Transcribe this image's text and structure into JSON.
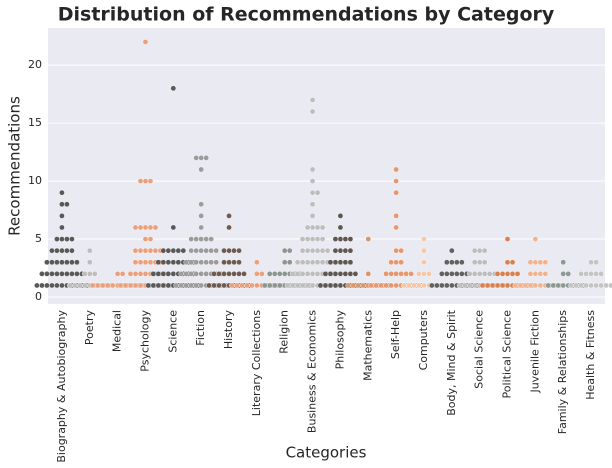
{
  "chart_data": {
    "type": "swarm",
    "title": "Distribution of Recommendations by Category",
    "xlabel": "Categories",
    "ylabel": "Recommendations",
    "ylim": [
      -0.6,
      23.2
    ],
    "yticks": [
      0,
      5,
      10,
      15,
      20
    ],
    "grid": true,
    "categories": [
      "Biography & Autobiography",
      "Poetry",
      "Medical",
      "Psychology",
      "Science",
      "Fiction",
      "History",
      "Literary Collections",
      "Religion",
      "Business & Economics",
      "Philosophy",
      "Mathematics",
      "Self-Help",
      "Computers",
      "Body, Mind & Spirit",
      "Social Science",
      "Political Science",
      "Juvenile Fiction",
      "Family & Relationships",
      "Health & Fitness"
    ],
    "colors": [
      "#595959",
      "#bdbdbd",
      "#e9a07c",
      "#e9a07c",
      "#595959",
      "#9c9c9c",
      "#6e5a50",
      "#e9a07c",
      "#8b9691",
      "#bdbdbd",
      "#5e5650",
      "#d9966c",
      "#e6976f",
      "#f2c7aa",
      "#626262",
      "#bdbdbd",
      "#d9804f",
      "#efb48f",
      "#8b9a92",
      "#c4c4c4"
    ],
    "values": [
      [
        1,
        1,
        1,
        1,
        1,
        1,
        1,
        1,
        1,
        1,
        1,
        2,
        2,
        2,
        2,
        2,
        2,
        2,
        2,
        2,
        3,
        3,
        3,
        3,
        3,
        3,
        3,
        4,
        4,
        4,
        4,
        4,
        5,
        5,
        5,
        5,
        6,
        7,
        8,
        8,
        9
      ],
      [
        1,
        1,
        1,
        1,
        1,
        1,
        1,
        1,
        1,
        2,
        2,
        2,
        3,
        4
      ],
      [
        1,
        1,
        1,
        1,
        1,
        1,
        1,
        1,
        1,
        1,
        1,
        2,
        2
      ],
      [
        1,
        1,
        1,
        1,
        1,
        1,
        1,
        1,
        1,
        1,
        1,
        2,
        2,
        2,
        2,
        2,
        2,
        2,
        2,
        3,
        3,
        3,
        3,
        3,
        3,
        4,
        4,
        4,
        4,
        4,
        4,
        5,
        5,
        6,
        6,
        6,
        6,
        6,
        10,
        10,
        10,
        22
      ],
      [
        1,
        1,
        1,
        1,
        1,
        1,
        1,
        1,
        1,
        1,
        1,
        2,
        2,
        2,
        2,
        2,
        2,
        2,
        2,
        2,
        3,
        3,
        3,
        3,
        3,
        3,
        3,
        3,
        4,
        4,
        4,
        4,
        4,
        6,
        18
      ],
      [
        1,
        1,
        1,
        1,
        1,
        1,
        1,
        1,
        1,
        1,
        1,
        2,
        2,
        2,
        2,
        2,
        2,
        2,
        2,
        2,
        3,
        3,
        3,
        3,
        3,
        3,
        3,
        4,
        4,
        4,
        4,
        4,
        4,
        5,
        5,
        5,
        5,
        5,
        6,
        7,
        8,
        11,
        12,
        12,
        12
      ],
      [
        1,
        1,
        1,
        1,
        1,
        1,
        1,
        1,
        1,
        2,
        2,
        2,
        2,
        2,
        2,
        2,
        3,
        3,
        3,
        3,
        4,
        4,
        4,
        4,
        6,
        7
      ],
      [
        1,
        1,
        1,
        1,
        1,
        1,
        1,
        1,
        1,
        1,
        1,
        2,
        2,
        3
      ],
      [
        1,
        1,
        1,
        1,
        1,
        1,
        1,
        1,
        1,
        1,
        2,
        2,
        2,
        2,
        2,
        2,
        2,
        3,
        3,
        4,
        4
      ],
      [
        1,
        1,
        1,
        1,
        1,
        1,
        1,
        1,
        1,
        1,
        1,
        2,
        2,
        2,
        2,
        2,
        2,
        2,
        2,
        2,
        3,
        3,
        3,
        3,
        3,
        3,
        3,
        4,
        4,
        4,
        4,
        4,
        4,
        5,
        5,
        5,
        5,
        5,
        6,
        6,
        6,
        6,
        7,
        8,
        9,
        9,
        10,
        11,
        16,
        17
      ],
      [
        1,
        1,
        1,
        1,
        1,
        1,
        1,
        1,
        1,
        1,
        2,
        2,
        2,
        2,
        2,
        2,
        2,
        3,
        3,
        3,
        3,
        3,
        4,
        4,
        4,
        4,
        5,
        5,
        5,
        5,
        6,
        7
      ],
      [
        1,
        1,
        1,
        1,
        1,
        1,
        1,
        1,
        1,
        2,
        5
      ],
      [
        1,
        1,
        1,
        1,
        1,
        1,
        1,
        1,
        1,
        1,
        1,
        2,
        2,
        2,
        2,
        2,
        2,
        3,
        3,
        3,
        4,
        4,
        6,
        7,
        9,
        10,
        11
      ],
      [
        1,
        1,
        1,
        1,
        1,
        1,
        1,
        1,
        1,
        2,
        2,
        2,
        3,
        4,
        5
      ],
      [
        1,
        1,
        1,
        1,
        1,
        1,
        1,
        1,
        1,
        1,
        2,
        2,
        2,
        2,
        2,
        2,
        3,
        3,
        3,
        3,
        4
      ],
      [
        1,
        1,
        1,
        1,
        1,
        1,
        1,
        1,
        1,
        1,
        2,
        2,
        2,
        2,
        2,
        2,
        3,
        3,
        3,
        4,
        4,
        4
      ],
      [
        1,
        1,
        1,
        1,
        1,
        1,
        1,
        1,
        1,
        1,
        1,
        2,
        2,
        2,
        2,
        2,
        3,
        3,
        5
      ],
      [
        1,
        1,
        1,
        1,
        1,
        1,
        1,
        1,
        1,
        1,
        2,
        2,
        2,
        2,
        3,
        3,
        3,
        3,
        5
      ],
      [
        1,
        1,
        1,
        1,
        1,
        1,
        1,
        1,
        2,
        2,
        3
      ],
      [
        1,
        1,
        1,
        1,
        1,
        1,
        1,
        1,
        1,
        1,
        2,
        2,
        2,
        2,
        2,
        3,
        3
      ]
    ]
  }
}
